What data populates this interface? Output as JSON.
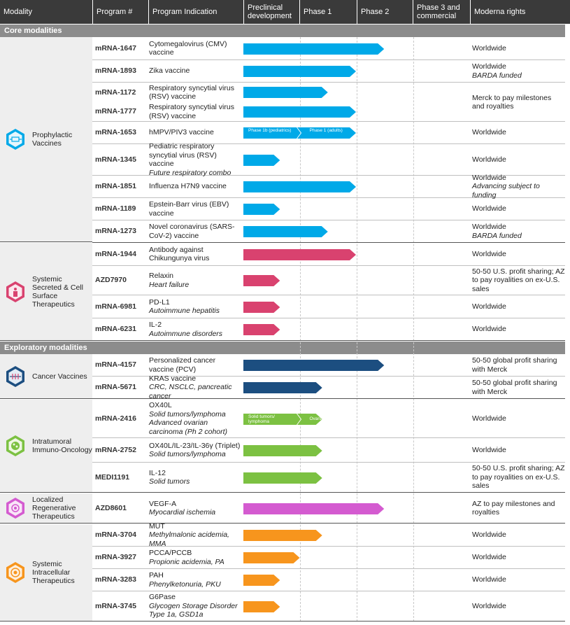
{
  "header": {
    "modality": "Modality",
    "program": "Program #",
    "indication": "Program Indication",
    "preclinical": "Preclinical development",
    "phase1": "Phase 1",
    "phase2": "Phase 2",
    "phase3": "Phase 3 and commercial",
    "rights": "Moderna rights"
  },
  "sections": {
    "core": "Core modalities",
    "exploratory": "Exploratory modalities"
  },
  "groups": {
    "prophylactic": "Prophylactic Vaccines",
    "secreted": "Systemic Secreted & Cell Surface Therapeutics",
    "cancer": "Cancer Vaccines",
    "intratumoral": "Intratumoral Immuno-Oncology",
    "regenerative": "Localized Regenerative Therapeutics",
    "intracellular": "Systemic Intracellular Therapeutics"
  },
  "colors": {
    "prophylactic": "#00a9e8",
    "secreted": "#d9426f",
    "cancer": "#1c4e80",
    "intratumoral": "#7cc142",
    "regenerative": "#d45bd0",
    "intracellular": "#f7951d"
  },
  "chart_data": {
    "type": "table",
    "phases": [
      "Preclinical development",
      "Phase 1",
      "Phase 2",
      "Phase 3 and commercial"
    ],
    "rows": [
      {
        "program": "mRNA-1647",
        "ind1": "Cytomegalovirus (CMV) vaccine",
        "ind2": "",
        "ind3": "",
        "stage": 2.5,
        "rights1": "Worldwide",
        "rights2": ""
      },
      {
        "program": "mRNA-1893",
        "ind1": "Zika vaccine",
        "ind2": "",
        "ind3": "",
        "stage": 2.0,
        "rights1": "Worldwide",
        "rights2": "BARDA funded"
      },
      {
        "program": "mRNA-1172",
        "ind1": "Respiratory syncytial virus (RSV) vaccine",
        "ind2": "",
        "ind3": "",
        "stage": 1.5,
        "rights1": "Merck to pay milestones and royalties",
        "rights2": ""
      },
      {
        "program": "mRNA-1777",
        "ind1": "Respiratory syncytial virus (RSV) vaccine",
        "ind2": "",
        "ind3": "",
        "stage": 2.0,
        "rights1": "",
        "rights2": ""
      },
      {
        "program": "mRNA-1653",
        "ind1": "hMPV/PIV3 vaccine",
        "ind2": "",
        "ind3": "",
        "stage": 2.0,
        "rights1": "Worldwide",
        "rights2": "",
        "seg_labels": [
          "Phase 1b (pediatrics)",
          "Phase 1 (adults)"
        ]
      },
      {
        "program": "mRNA-1345",
        "ind1": "Pediatric respiratory syncytial virus (RSV) vaccine",
        "ind2": "Future respiratory combo",
        "ind3": "",
        "stage": 0.65,
        "rights1": "Worldwide",
        "rights2": ""
      },
      {
        "program": "mRNA-1851",
        "ind1": "Influenza H7N9 vaccine",
        "ind2": "",
        "ind3": "",
        "stage": 2.0,
        "rights1": "Worldwide",
        "rights2": "Advancing subject to funding"
      },
      {
        "program": "mRNA-1189",
        "ind1": "Epstein-Barr virus (EBV) vaccine",
        "ind2": "",
        "ind3": "",
        "stage": 0.65,
        "rights1": "Worldwide",
        "rights2": ""
      },
      {
        "program": "mRNA-1273",
        "ind1": "Novel coronavirus (SARS-CoV-2) vaccine",
        "ind2": "",
        "ind3": "",
        "stage": 1.5,
        "rights1": "Worldwide",
        "rights2": "BARDA funded"
      },
      {
        "program": "mRNA-1944",
        "ind1": "Antibody against Chikungunya virus",
        "ind2": "",
        "ind3": "",
        "stage": 2.0,
        "rights1": "Worldwide",
        "rights2": ""
      },
      {
        "program": "AZD7970",
        "ind1": "Relaxin",
        "ind2": "Heart failure",
        "ind3": "",
        "stage": 0.65,
        "rights1": "50-50 U.S. profit sharing; AZ to pay royalities on ex-U.S. sales",
        "rights2": ""
      },
      {
        "program": "mRNA-6981",
        "ind1": "PD-L1",
        "ind2": "Autoimmune hepatitis",
        "ind3": "",
        "stage": 0.65,
        "rights1": "Worldwide",
        "rights2": ""
      },
      {
        "program": "mRNA-6231",
        "ind1": "IL-2",
        "ind2": "Autoimmune disorders",
        "ind3": "",
        "stage": 0.65,
        "rights1": "Worldwide",
        "rights2": ""
      },
      {
        "program": "mRNA-4157",
        "ind1": "Personalized cancer vaccine (PCV)",
        "ind2": "",
        "ind3": "",
        "stage": 2.5,
        "rights1": "50-50 global profit sharing with Merck",
        "rights2": ""
      },
      {
        "program": "mRNA-5671",
        "ind1": "KRAS vaccine",
        "ind2": "CRC, NSCLC, pancreatic cancer",
        "ind3": "",
        "stage": 1.4,
        "rights1": "50-50 global profit sharing with Merck",
        "rights2": ""
      },
      {
        "program": "mRNA-2416",
        "ind1": "OX40L",
        "ind2": "Solid tumors/lymphoma",
        "ind3": "Advanced ovarian carcinoma (Ph 2 cohort)",
        "stage": 1.4,
        "rights1": "Worldwide",
        "rights2": "",
        "seg_labels": [
          "Solid tumors/ lymphoma",
          "Ovarian"
        ]
      },
      {
        "program": "mRNA-2752",
        "ind1": "OX40L/IL-23/IL-36γ (Triplet)",
        "ind2": "Solid tumors/lymphoma",
        "ind3": "",
        "stage": 1.4,
        "rights1": "Worldwide",
        "rights2": ""
      },
      {
        "program": "MEDI1191",
        "ind1": "IL-12",
        "ind2": "Solid tumors",
        "ind3": "",
        "stage": 1.4,
        "rights1": "50-50 U.S. profit sharing; AZ to pay royalities on ex-U.S. sales",
        "rights2": ""
      },
      {
        "program": "AZD8601",
        "ind1": "VEGF-A",
        "ind2": "Myocardial ischemia",
        "ind3": "",
        "stage": 2.5,
        "rights1": "AZ to pay milestones and royalties",
        "rights2": ""
      },
      {
        "program": "mRNA-3704",
        "ind1": "MUT",
        "ind2": "Methylmalonic acidemia, MMA",
        "ind3": "",
        "stage": 1.4,
        "rights1": "Worldwide",
        "rights2": ""
      },
      {
        "program": "mRNA-3927",
        "ind1": "PCCA/PCCB",
        "ind2": "Propionic acidemia, PA",
        "ind3": "",
        "stage": 1.0,
        "rights1": "Worldwide",
        "rights2": ""
      },
      {
        "program": "mRNA-3283",
        "ind1": "PAH",
        "ind2": "Phenylketonuria, PKU",
        "ind3": "",
        "stage": 0.65,
        "rights1": "Worldwide",
        "rights2": ""
      },
      {
        "program": "mRNA-3745",
        "ind1": "G6Pase",
        "ind2": "Glycogen Storage Disorder Type 1a, GSD1a",
        "ind3": "",
        "stage": 0.65,
        "rights1": "Worldwide",
        "rights2": ""
      }
    ]
  }
}
